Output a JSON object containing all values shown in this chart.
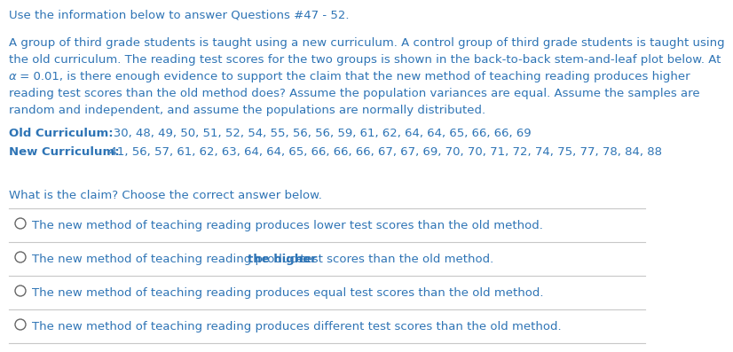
{
  "background_color": "#ffffff",
  "blue": "#2e74b5",
  "header": "Use the information below to answer Questions #47 - 52.",
  "para_line1": "A group of third grade students is taught using a new curriculum. A control group of third grade students is taught using",
  "para_line2": "the old curriculum. The reading test scores for the two groups is shown in the back-to-back stem-and-leaf plot below. At",
  "para_line3_before_alpha": "",
  "para_line3_alpha": "α",
  "para_line3_after_alpha": " = 0.01, is there enough evidence to support the claim that the new method of teaching reading produces higher",
  "para_line4": "reading test scores than the old method does? Assume the population variances are equal. Assume the samples are",
  "para_line5": "random and independent, and assume the populations are normally distributed.",
  "old_label": "Old Curriculum:",
  "old_data": "   30, 48, 49, 50, 51, 52, 54, 55, 56, 56, 59, 61, 62, 64, 64, 65, 66, 66, 69",
  "new_label": "New Curriculum:",
  "new_data": "  41, 56, 57, 61, 62, 63, 64, 64, 65, 66, 66, 66, 67, 67, 69, 70, 70, 71, 72, 74, 75, 77, 78, 84, 88",
  "question": "What is the claim? Choose the correct answer below.",
  "opt1": "The new method of teaching reading produces lower test scores than the old method.",
  "opt2_pre": "The new method of teaching reading produces ",
  "opt2_bold": "the higher",
  "opt2_post": " test scores than the old method.",
  "opt3": "The new method of teaching reading produces equal test scores than the old method.",
  "opt4": "The new method of teaching reading produces different test scores than the old method.",
  "line_color": "#c8c8c8",
  "fs": 9.5
}
